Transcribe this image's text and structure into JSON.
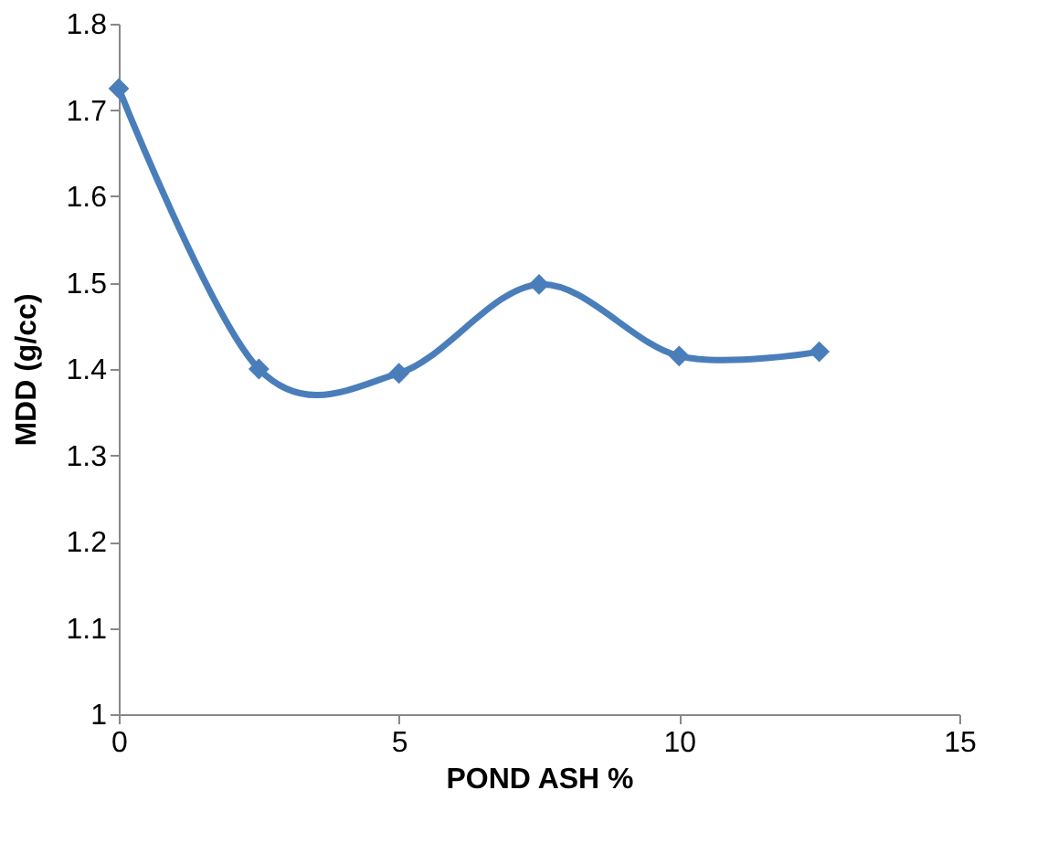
{
  "chart_data": {
    "type": "line",
    "xlabel": "POND ASH %",
    "ylabel": "MDD (g/cc)",
    "x": [
      0,
      2.5,
      5,
      7.5,
      10,
      12.5
    ],
    "series": [
      {
        "color": "#4a7ebb",
        "values": [
          1.725,
          1.4,
          1.395,
          1.498,
          1.415,
          1.42
        ]
      }
    ],
    "xlim": [
      0,
      15
    ],
    "xticks": [
      0,
      5,
      10,
      15
    ],
    "ylim": [
      1,
      1.8
    ],
    "yticks": [
      1,
      1.1,
      1.2,
      1.3,
      1.4,
      1.5,
      1.6,
      1.7,
      1.8
    ],
    "grid": false,
    "legend": false,
    "marker": "diamond",
    "line_style": "solid"
  }
}
